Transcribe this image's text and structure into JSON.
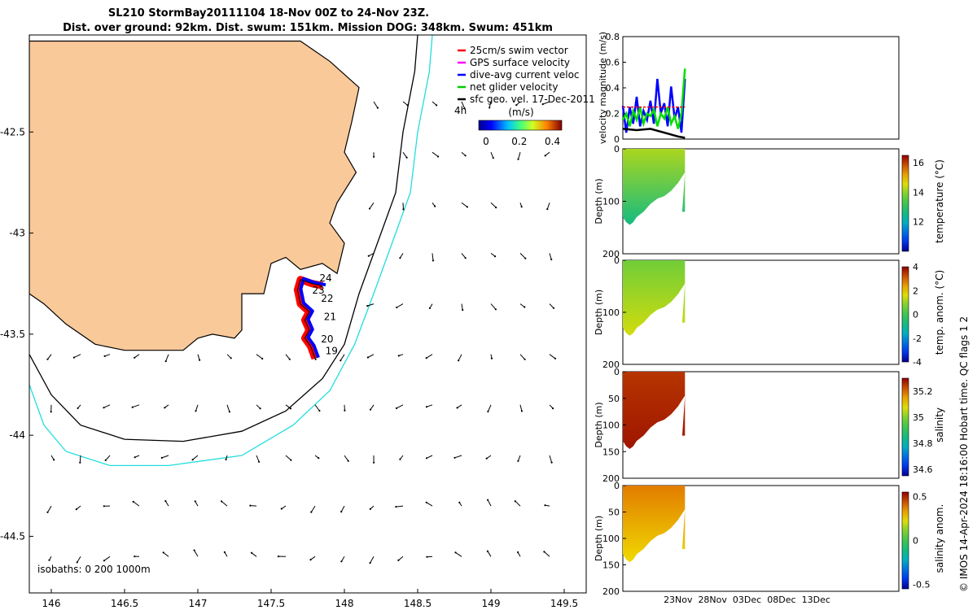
{
  "title_line1": "SL210 StormBay20111104 18-Nov 00Z to 24-Nov 23Z.",
  "title_line2": "Dist. over ground: 92km. Dist. swum: 151km. Mission DOG: 348km. Swum: 451km",
  "isobaths_note": "isobaths: 0   200  1000m",
  "credit": "© IMOS 14-Apr-2024 18:16:00 Hobart time. QC flags 1  2",
  "chart_data": [
    {
      "type": "map",
      "name": "glider-track-map",
      "xticks": [
        "146",
        "146.5",
        "147",
        "147.5",
        "148",
        "148.5",
        "149",
        "149.5"
      ],
      "xtick_values": [
        146,
        146.5,
        147,
        147.5,
        148,
        148.5,
        149,
        149.5
      ],
      "yticks": [
        "-42.5",
        "-43",
        "-43.5",
        "-44",
        "-44.5"
      ],
      "ytick_values": [
        -42.5,
        -43,
        -43.5,
        -44,
        -44.5
      ],
      "xlim": [
        145.85,
        149.65
      ],
      "ylim": [
        -44.78,
        -42.02
      ],
      "legend": [
        {
          "label": "25cm/s swim vector",
          "color": "#ff0000"
        },
        {
          "label": "GPS surface velocity",
          "color": "#ff00ff"
        },
        {
          "label": "dive-avg current veloc",
          "color": "#0000ff"
        },
        {
          "label": "net glider velocity",
          "color": "#00cc00"
        },
        {
          "label": "sfc geo. vel. 17-Dec-2011",
          "color": "#000000"
        }
      ],
      "arrow_label": "4h",
      "colorbar": {
        "title": "(m/s)",
        "ticks": [
          "0",
          "0.2",
          "0.4"
        ],
        "range": [
          0,
          0.5
        ]
      },
      "day_labels": [
        {
          "text": "24",
          "lon": 147.83,
          "lat": -43.24
        },
        {
          "text": "23",
          "lon": 147.78,
          "lat": -43.3
        },
        {
          "text": "22",
          "lon": 147.84,
          "lat": -43.34
        },
        {
          "text": "21",
          "lon": 147.86,
          "lat": -43.43
        },
        {
          "text": "20",
          "lon": 147.84,
          "lat": -43.54
        },
        {
          "text": "19",
          "lon": 147.87,
          "lat": -43.6
        }
      ],
      "track": [
        [
          147.8,
          -43.62
        ],
        [
          147.77,
          -43.56
        ],
        [
          147.73,
          -43.52
        ],
        [
          147.76,
          -43.48
        ],
        [
          147.73,
          -43.43
        ],
        [
          147.76,
          -43.39
        ],
        [
          147.7,
          -43.35
        ],
        [
          147.68,
          -43.28
        ],
        [
          147.7,
          -43.23
        ],
        [
          147.78,
          -43.25
        ],
        [
          147.85,
          -43.26
        ]
      ],
      "coast": [
        [
          145.85,
          -42.05
        ],
        [
          146.4,
          -42.05
        ],
        [
          147.0,
          -42.05
        ],
        [
          147.7,
          -42.05
        ],
        [
          147.9,
          -42.15
        ],
        [
          148.1,
          -42.28
        ],
        [
          148.05,
          -42.45
        ],
        [
          148.0,
          -42.6
        ],
        [
          148.08,
          -42.7
        ],
        [
          147.95,
          -42.85
        ],
        [
          147.9,
          -42.95
        ],
        [
          148.0,
          -43.05
        ],
        [
          147.95,
          -43.2
        ],
        [
          147.85,
          -43.15
        ],
        [
          147.7,
          -43.18
        ],
        [
          147.6,
          -43.12
        ],
        [
          147.5,
          -43.15
        ],
        [
          147.45,
          -43.3
        ],
        [
          147.3,
          -43.3
        ],
        [
          147.3,
          -43.48
        ],
        [
          147.25,
          -43.52
        ],
        [
          147.1,
          -43.5
        ],
        [
          147.0,
          -43.52
        ],
        [
          146.9,
          -43.58
        ],
        [
          146.7,
          -43.58
        ],
        [
          146.5,
          -43.58
        ],
        [
          146.3,
          -43.55
        ],
        [
          146.1,
          -43.45
        ],
        [
          145.95,
          -43.35
        ],
        [
          145.85,
          -43.3
        ]
      ],
      "isobath_200": [
        [
          148.5,
          -42.02
        ],
        [
          148.48,
          -42.2
        ],
        [
          148.4,
          -42.5
        ],
        [
          148.35,
          -42.8
        ],
        [
          148.25,
          -43.0
        ],
        [
          148.1,
          -43.3
        ],
        [
          148.0,
          -43.55
        ],
        [
          147.85,
          -43.72
        ],
        [
          147.6,
          -43.88
        ],
        [
          147.3,
          -43.98
        ],
        [
          146.9,
          -44.03
        ],
        [
          146.5,
          -44.02
        ],
        [
          146.2,
          -43.95
        ],
        [
          146.0,
          -43.8
        ],
        [
          145.85,
          -43.6
        ]
      ],
      "isobath_1000": [
        [
          148.6,
          -42.02
        ],
        [
          148.58,
          -42.2
        ],
        [
          148.5,
          -42.5
        ],
        [
          148.45,
          -42.8
        ],
        [
          148.35,
          -43.0
        ],
        [
          148.2,
          -43.3
        ],
        [
          148.07,
          -43.55
        ],
        [
          147.9,
          -43.78
        ],
        [
          147.65,
          -43.95
        ],
        [
          147.3,
          -44.1
        ],
        [
          146.8,
          -44.15
        ],
        [
          146.4,
          -44.15
        ],
        [
          146.1,
          -44.08
        ],
        [
          145.95,
          -43.95
        ],
        [
          145.85,
          -43.75
        ]
      ]
    },
    {
      "type": "line",
      "name": "velocity-magnitude",
      "ylabel": "velocity magnitude (m/s)",
      "ylim": [
        0,
        0.8
      ],
      "yticks": [
        "0",
        "0.2",
        "0.4",
        "0.6",
        "0.8"
      ],
      "ytick_values": [
        0,
        0.2,
        0.4,
        0.6,
        0.8
      ],
      "x_range_days": [
        0,
        40
      ],
      "series": [
        {
          "name": "dive-avg current",
          "color": "#0000ff",
          "x": [
            0,
            0.5,
            1,
            1.5,
            2,
            2.5,
            3,
            3.5,
            4,
            4.5,
            5,
            5.5,
            6,
            6.5,
            7,
            7.5,
            8,
            8.5,
            9
          ],
          "y": [
            0.26,
            0.05,
            0.25,
            0.12,
            0.33,
            0.1,
            0.22,
            0.15,
            0.3,
            0.12,
            0.47,
            0.2,
            0.28,
            0.1,
            0.41,
            0.16,
            0.25,
            0.05,
            0.47
          ]
        },
        {
          "name": "net glider",
          "color": "#00dd00",
          "x": [
            0,
            0.5,
            1,
            1.5,
            2,
            2.5,
            3,
            3.5,
            4,
            4.5,
            5,
            5.5,
            6,
            6.5,
            7,
            7.5,
            8,
            8.5,
            9
          ],
          "y": [
            0.15,
            0.2,
            0.1,
            0.22,
            0.15,
            0.25,
            0.12,
            0.2,
            0.18,
            0.23,
            0.1,
            0.2,
            0.16,
            0.25,
            0.12,
            0.18,
            0.08,
            0.2,
            0.55
          ]
        },
        {
          "name": "swim vector",
          "color": "#ff0000",
          "x": [
            0,
            9
          ],
          "y": [
            0.25,
            0.25
          ]
        },
        {
          "name": "sfc geo",
          "color": "#000000",
          "x": [
            0,
            2,
            4,
            6,
            8,
            9
          ],
          "y": [
            0.08,
            0.07,
            0.08,
            0.05,
            0.02,
            0.01
          ]
        }
      ]
    },
    {
      "type": "heatmap",
      "name": "temperature-section",
      "ylabel": "Depth (m)",
      "yticks": [
        "0",
        "100",
        "200"
      ],
      "ytick_values": [
        0,
        100,
        200
      ],
      "ylim": [
        200,
        0
      ],
      "colorbar_label": "temperature (°C)",
      "colorbar_ticks": [
        "16",
        "14",
        "12"
      ],
      "colorbar_tick_values": [
        16,
        14,
        12
      ],
      "colorbar_range": [
        10,
        16.5
      ],
      "value_top": 14.2,
      "value_bottom": 12.6
    },
    {
      "type": "heatmap",
      "name": "temperature-anomaly-section",
      "ylabel": "Depth (m)",
      "yticks": [
        "0",
        "100",
        "200"
      ],
      "ytick_values": [
        0,
        100,
        200
      ],
      "ylim": [
        200,
        0
      ],
      "colorbar_label": "temp. anom. (°C)",
      "colorbar_ticks": [
        "4",
        "2",
        "0",
        "-2",
        "-4"
      ],
      "colorbar_tick_values": [
        4,
        2,
        0,
        -2,
        -4
      ],
      "colorbar_range": [
        -4,
        4
      ],
      "value_top": 0.6,
      "value_bottom": 1.5
    },
    {
      "type": "heatmap",
      "name": "salinity-section",
      "ylabel": "Depth (m)",
      "yticks": [
        "0",
        "50",
        "100",
        "150",
        "200"
      ],
      "ytick_values": [
        0,
        50,
        100,
        150,
        200
      ],
      "ylim": [
        200,
        0
      ],
      "colorbar_label": "salinity",
      "colorbar_ticks": [
        "35.2",
        "35",
        "34.8",
        "34.6"
      ],
      "colorbar_tick_values": [
        35.2,
        35,
        34.8,
        34.6
      ],
      "colorbar_range": [
        34.55,
        35.3
      ],
      "value_top": 35.25,
      "value_bottom": 35.28
    },
    {
      "type": "heatmap",
      "name": "salinity-anomaly-section",
      "ylabel": "Depth (m)",
      "yticks": [
        "0",
        "50",
        "100",
        "150",
        "200"
      ],
      "ytick_values": [
        0,
        50,
        100,
        150,
        200
      ],
      "ylim": [
        200,
        0
      ],
      "xticks": [
        "23Nov",
        "28Nov",
        "03Dec",
        "08Dec",
        "13Dec"
      ],
      "xtick_days": [
        8,
        13,
        18,
        23,
        28
      ],
      "colorbar_label": "salinity anom.",
      "colorbar_ticks": [
        "0.5",
        "0",
        "-0.5"
      ],
      "colorbar_tick_values": [
        0.5,
        0,
        -0.5
      ],
      "colorbar_range": [
        -0.55,
        0.55
      ],
      "value_top": 0.38,
      "value_bottom": 0.25
    }
  ]
}
